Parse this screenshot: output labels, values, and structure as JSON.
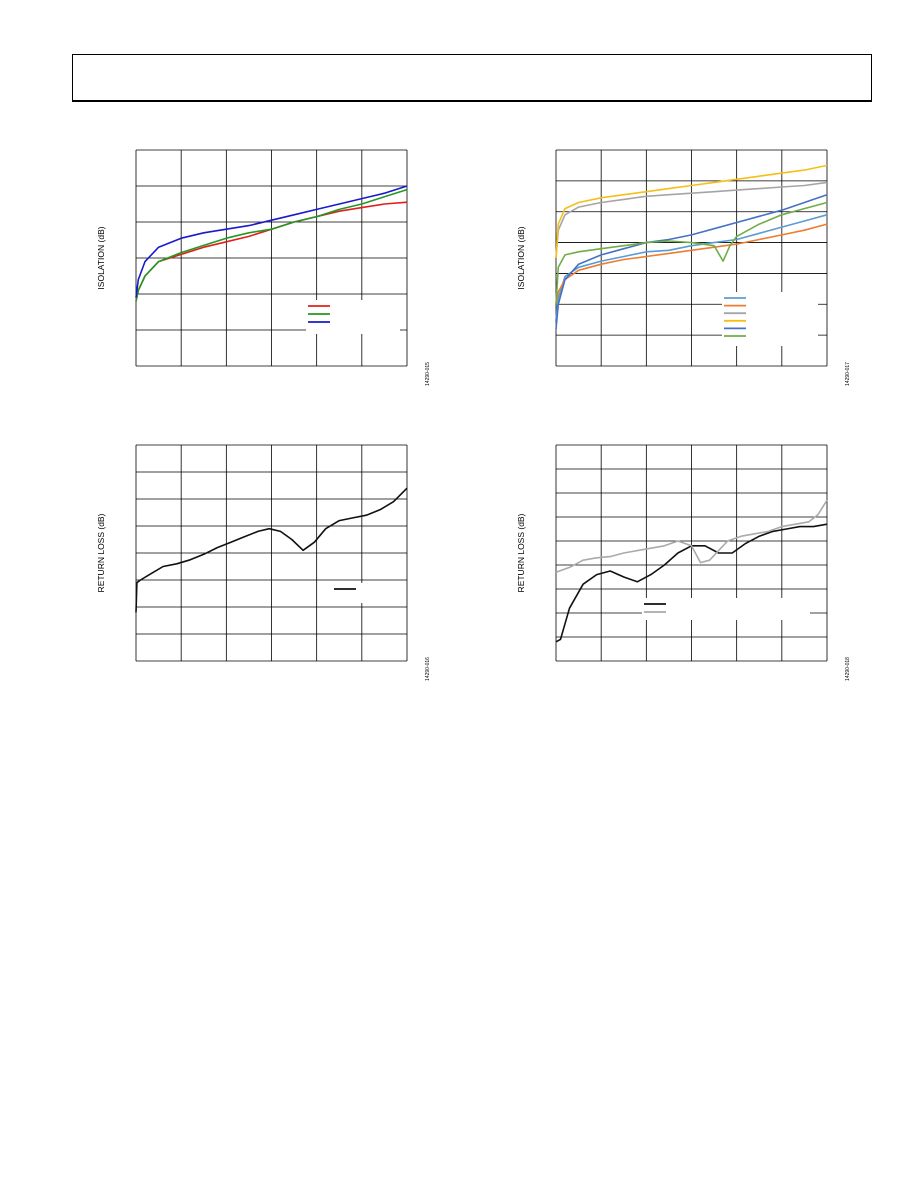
{
  "header": {
    "text": ""
  },
  "charts": [
    {
      "ylabel": "ISOLATION (dB)",
      "fig_id": "14290-015",
      "legend": [
        {
          "color": "#e02020"
        },
        {
          "color": "#229922"
        },
        {
          "color": "#1a1acc"
        }
      ]
    },
    {
      "ylabel": "ISOLATION (dB)",
      "fig_id": "14290-017",
      "legend": [
        {
          "color": "#5b9bd5"
        },
        {
          "color": "#ed7d31"
        },
        {
          "color": "#a5a5a5"
        },
        {
          "color": "#f4c016"
        },
        {
          "color": "#4472c4"
        },
        {
          "color": "#70ad47"
        }
      ]
    },
    {
      "ylabel": "RETURN LOSS (dB)",
      "fig_id": "14290-016",
      "legend": [
        {
          "color": "#111111"
        }
      ]
    },
    {
      "ylabel": "RETURN LOSS (dB)",
      "fig_id": "14290-018",
      "legend": [
        {
          "color": "#111111"
        },
        {
          "color": "#aaaaaa"
        }
      ]
    }
  ],
  "chart_data": [
    {
      "type": "line",
      "title": "",
      "xlabel": "",
      "ylabel": "ISOLATION (dB)",
      "xlim": [
        0,
        6
      ],
      "ylim": [
        0,
        6
      ],
      "grid": true,
      "legend_position": "center-right",
      "series": [
        {
          "color": "#e02020",
          "x": [
            0,
            0.05,
            0.2,
            0.5,
            1,
            1.5,
            2,
            2.5,
            3,
            3.5,
            4,
            4.5,
            5,
            5.5,
            6
          ],
          "y": [
            1.8,
            2.1,
            2.5,
            2.9,
            3.1,
            3.3,
            3.45,
            3.6,
            3.8,
            4.0,
            4.15,
            4.3,
            4.4,
            4.5,
            4.55
          ]
        },
        {
          "color": "#229922",
          "x": [
            0,
            0.05,
            0.2,
            0.5,
            1,
            1.5,
            2,
            2.5,
            3,
            3.5,
            4,
            4.5,
            5,
            5.5,
            6
          ],
          "y": [
            1.8,
            2.1,
            2.5,
            2.9,
            3.15,
            3.35,
            3.55,
            3.7,
            3.8,
            4.0,
            4.15,
            4.35,
            4.5,
            4.7,
            4.9
          ]
        },
        {
          "color": "#1a1acc",
          "x": [
            0,
            0.05,
            0.2,
            0.5,
            1,
            1.5,
            2,
            2.5,
            3,
            3.5,
            4,
            4.5,
            5,
            5.5,
            6
          ],
          "y": [
            1.9,
            2.4,
            2.9,
            3.3,
            3.55,
            3.7,
            3.8,
            3.9,
            4.05,
            4.2,
            4.35,
            4.5,
            4.65,
            4.8,
            5.0
          ]
        }
      ]
    },
    {
      "type": "line",
      "title": "",
      "xlabel": "",
      "ylabel": "ISOLATION (dB)",
      "xlim": [
        0,
        6
      ],
      "ylim": [
        0,
        7
      ],
      "grid": true,
      "legend_position": "center-right",
      "series": [
        {
          "color": "#5b9bd5",
          "x": [
            0,
            0.05,
            0.2,
            0.5,
            1,
            1.5,
            2,
            2.5,
            3,
            3.5,
            4,
            4.5,
            5,
            5.5,
            6
          ],
          "y": [
            1.5,
            2.2,
            2.9,
            3.2,
            3.4,
            3.55,
            3.7,
            3.75,
            3.9,
            4.0,
            4.1,
            4.3,
            4.5,
            4.7,
            4.9
          ]
        },
        {
          "color": "#ed7d31",
          "x": [
            0,
            0.05,
            0.2,
            0.5,
            1,
            1.5,
            2,
            2.5,
            3,
            3.5,
            4,
            4.5,
            5,
            5.5,
            6
          ],
          "y": [
            2.0,
            2.4,
            2.8,
            3.1,
            3.3,
            3.45,
            3.55,
            3.65,
            3.75,
            3.85,
            3.95,
            4.1,
            4.25,
            4.4,
            4.6
          ]
        },
        {
          "color": "#a5a5a5",
          "x": [
            0,
            0.05,
            0.2,
            0.5,
            1,
            1.5,
            2,
            2.5,
            3,
            3.5,
            4,
            4.5,
            5,
            5.5,
            6
          ],
          "y": [
            3.5,
            4.4,
            4.9,
            5.15,
            5.3,
            5.4,
            5.5,
            5.55,
            5.6,
            5.65,
            5.7,
            5.75,
            5.8,
            5.85,
            5.95
          ]
        },
        {
          "color": "#f4c016",
          "x": [
            0,
            0.05,
            0.2,
            0.5,
            1,
            1.5,
            2,
            2.5,
            3,
            3.5,
            4,
            4.5,
            5,
            5.5,
            6
          ],
          "y": [
            3.5,
            4.6,
            5.1,
            5.3,
            5.45,
            5.55,
            5.65,
            5.75,
            5.85,
            5.95,
            6.05,
            6.15,
            6.25,
            6.35,
            6.5
          ]
        },
        {
          "color": "#4472c4",
          "x": [
            0,
            0.05,
            0.2,
            0.5,
            1,
            1.5,
            2,
            2.5,
            3,
            3.5,
            4,
            4.5,
            5,
            5.5,
            6
          ],
          "y": [
            1.2,
            2.0,
            2.8,
            3.3,
            3.6,
            3.8,
            4.0,
            4.1,
            4.25,
            4.45,
            4.65,
            4.85,
            5.05,
            5.3,
            5.55
          ]
        },
        {
          "color": "#70ad47",
          "x": [
            0,
            0.05,
            0.2,
            0.5,
            1,
            1.5,
            2,
            2.5,
            3,
            3.5,
            3.7,
            3.85,
            4,
            4.5,
            5,
            5.5,
            6
          ],
          "y": [
            2.0,
            3.2,
            3.6,
            3.7,
            3.8,
            3.9,
            4.0,
            4.05,
            4.0,
            3.9,
            3.4,
            3.9,
            4.2,
            4.6,
            4.9,
            5.1,
            5.3
          ]
        }
      ]
    },
    {
      "type": "line",
      "title": "",
      "xlabel": "",
      "ylabel": "RETURN LOSS (dB)",
      "xlim": [
        0,
        6
      ],
      "ylim": [
        0,
        8
      ],
      "grid": true,
      "legend_position": "center-right",
      "series": [
        {
          "color": "#111111",
          "x": [
            0,
            0.02,
            0.1,
            0.3,
            0.6,
            0.9,
            1.2,
            1.5,
            1.8,
            2.1,
            2.4,
            2.7,
            2.95,
            3.2,
            3.45,
            3.7,
            3.95,
            4.2,
            4.5,
            4.8,
            5.1,
            5.4,
            5.7,
            6
          ],
          "y": [
            1.8,
            2.9,
            3.0,
            3.2,
            3.5,
            3.6,
            3.75,
            3.95,
            4.2,
            4.4,
            4.6,
            4.8,
            4.9,
            4.8,
            4.5,
            4.1,
            4.4,
            4.9,
            5.2,
            5.3,
            5.4,
            5.6,
            5.9,
            6.4
          ]
        }
      ]
    },
    {
      "type": "line",
      "title": "",
      "xlabel": "",
      "ylabel": "RETURN LOSS (dB)",
      "xlim": [
        0,
        6
      ],
      "ylim": [
        0,
        9
      ],
      "grid": true,
      "legend_position": "bottom-center",
      "series": [
        {
          "color": "#111111",
          "x": [
            0,
            0.1,
            0.3,
            0.6,
            0.9,
            1.2,
            1.5,
            1.8,
            2.1,
            2.4,
            2.7,
            3.0,
            3.3,
            3.6,
            3.9,
            4.2,
            4.5,
            4.8,
            5.1,
            5.4,
            5.7,
            6
          ],
          "y": [
            0.8,
            0.9,
            2.2,
            3.2,
            3.6,
            3.75,
            3.5,
            3.3,
            3.6,
            4.0,
            4.5,
            4.8,
            4.8,
            4.5,
            4.5,
            4.9,
            5.2,
            5.4,
            5.5,
            5.6,
            5.6,
            5.7
          ]
        },
        {
          "color": "#aaaaaa",
          "x": [
            0,
            0.3,
            0.6,
            0.9,
            1.2,
            1.5,
            1.8,
            2.1,
            2.4,
            2.7,
            3.0,
            3.2,
            3.4,
            3.6,
            3.8,
            4.1,
            4.4,
            4.7,
            5.0,
            5.3,
            5.6,
            5.8,
            6
          ],
          "y": [
            3.7,
            3.9,
            4.2,
            4.3,
            4.35,
            4.5,
            4.6,
            4.7,
            4.8,
            5.0,
            4.8,
            4.1,
            4.2,
            4.6,
            5.0,
            5.2,
            5.3,
            5.4,
            5.6,
            5.7,
            5.8,
            6.1,
            6.7
          ]
        }
      ]
    }
  ]
}
